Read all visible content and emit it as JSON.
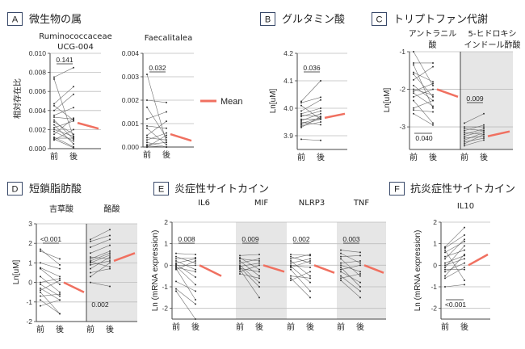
{
  "colors": {
    "mean": "#f07060",
    "subject": "#555555",
    "grid": "#bdbdbd",
    "shade": "#e6e6e6",
    "axis": "#444444"
  },
  "panels": {
    "A": {
      "letter": "A",
      "title": "微生物の属",
      "ylabel": "相対存在比"
    },
    "B": {
      "letter": "B",
      "title": "グルタミン酸",
      "ylabel": "Ln[uM]"
    },
    "C": {
      "letter": "C",
      "title": "トリプトファン代謝",
      "ylabel": "Ln[uM]"
    },
    "D": {
      "letter": "D",
      "title": "短鎖脂肪酸",
      "ylabel": "Ln[uM]"
    },
    "E": {
      "letter": "E",
      "title": "炎症性サイトカイン",
      "ylabel": "Ln (mRNA expression)"
    },
    "F": {
      "letter": "F",
      "title": "抗炎症性サイトカイン",
      "ylabel": "Ln (mRNA expression)"
    }
  },
  "legend": {
    "mean_label": "Mean"
  },
  "xlabels": {
    "pre": "前",
    "post": "後"
  },
  "chart_data": [
    {
      "id": "A1",
      "panel": "A",
      "type": "line",
      "title_lines": [
        "Ruminococcaceae",
        "UCG-004"
      ],
      "ylim": [
        0,
        0.01
      ],
      "yticks": [
        "0.000",
        "0.002",
        "0.004",
        "0.006",
        "0.008",
        "0.010"
      ],
      "tick_values": [
        0,
        0.002,
        0.004,
        0.006,
        0.008,
        0.01
      ],
      "p_value": "0.141",
      "mean": [
        0.0027,
        0.0021
      ],
      "pairs": [
        [
          0.0075,
          0.0085
        ],
        [
          0.0073,
          0.0012
        ],
        [
          0.0047,
          0.0065
        ],
        [
          0.0045,
          0.003
        ],
        [
          0.004,
          0.0057
        ],
        [
          0.0035,
          0.0043
        ],
        [
          0.0033,
          0.0031
        ],
        [
          0.003,
          0.001
        ],
        [
          0.0028,
          0.0015
        ],
        [
          0.0025,
          0.0005
        ],
        [
          0.0022,
          0.0029
        ],
        [
          0.002,
          0.0013
        ],
        [
          0.0018,
          0.0008
        ],
        [
          0.0015,
          0.0032
        ],
        [
          0.0012,
          0.0002
        ],
        [
          0.0011,
          0.0011
        ],
        [
          0.001,
          0.0001
        ],
        [
          0.0009,
          0.002
        ]
      ]
    },
    {
      "id": "A2",
      "panel": "A",
      "type": "line",
      "title_lines": [
        "Faecalitalea"
      ],
      "ylim": [
        0,
        0.004
      ],
      "yticks": [
        "0.000",
        "0.001",
        "0.002",
        "0.003",
        "0.004"
      ],
      "tick_values": [
        0,
        0.001,
        0.002,
        0.003,
        0.004
      ],
      "p_value": "0.032",
      "mean": [
        0.00055,
        0.00027
      ],
      "pairs": [
        [
          0.0031,
          0.0002
        ],
        [
          0.002,
          0.0019
        ],
        [
          0.0017,
          0.0004
        ],
        [
          0.0012,
          0.0015
        ],
        [
          0.0009,
          0.0008
        ],
        [
          0.0008,
          0.0001
        ],
        [
          0.0005,
          0.0011
        ],
        [
          0.0004,
          0.0003
        ],
        [
          0.0003,
          0.0006
        ],
        [
          0.0002,
          0.0
        ],
        [
          0.0001,
          0.0002
        ],
        [
          0.0,
          0.0
        ],
        [
          0.0,
          0.0005
        ],
        [
          5e-05,
          0.0
        ]
      ]
    },
    {
      "id": "B1",
      "panel": "B",
      "type": "line",
      "title_lines": [],
      "ylim": [
        3.85,
        4.2
      ],
      "yticks": [
        "3.9",
        "4.0",
        "4.1",
        "4.2"
      ],
      "tick_values": [
        3.9,
        4.0,
        4.1,
        4.2
      ],
      "p_value": "0.036",
      "mean": [
        3.965,
        3.98
      ],
      "pairs": [
        [
          4.025,
          4.1
        ],
        [
          4.02,
          4.04
        ],
        [
          4.01,
          3.96
        ],
        [
          3.99,
          4.03
        ],
        [
          3.98,
          4.0
        ],
        [
          3.975,
          3.97
        ],
        [
          3.97,
          3.99
        ],
        [
          3.96,
          3.96
        ],
        [
          3.955,
          3.98
        ],
        [
          3.95,
          3.94
        ],
        [
          3.945,
          3.965
        ],
        [
          3.94,
          3.96
        ],
        [
          3.935,
          3.95
        ],
        [
          3.93,
          3.97
        ],
        [
          3.887,
          3.883
        ]
      ]
    },
    {
      "id": "C1",
      "panel": "C",
      "type": "line",
      "title_lines": [
        "アントラニル",
        "酸"
      ],
      "ylim": [
        -3.6,
        -1
      ],
      "yticks": [
        "-1",
        "-2",
        "-3"
      ],
      "tick_values": [
        -1,
        -2,
        -3
      ],
      "p_value": "0.040",
      "mean": [
        -2.0,
        -2.2
      ],
      "pairs": [
        [
          -1.0,
          -1.9
        ],
        [
          -1.3,
          -1.3
        ],
        [
          -1.35,
          -2.5
        ],
        [
          -1.55,
          -1.8
        ],
        [
          -1.6,
          -2.2
        ],
        [
          -1.75,
          -1.4
        ],
        [
          -1.9,
          -2.3
        ],
        [
          -2.0,
          -2.15
        ],
        [
          -2.05,
          -1.85
        ],
        [
          -2.1,
          -2.45
        ],
        [
          -2.2,
          -2.0
        ],
        [
          -2.3,
          -2.9
        ],
        [
          -2.5,
          -2.3
        ],
        [
          -2.55,
          -2.6
        ],
        [
          -2.65,
          -2.95
        ]
      ]
    },
    {
      "id": "C2",
      "panel": "C",
      "type": "line",
      "title_lines": [
        "5-ヒドロキシ",
        "インドール酢酸"
      ],
      "ylim": [
        -3.6,
        -1
      ],
      "p_value": "0.009",
      "mean": [
        -3.25,
        -3.12
      ],
      "pairs": [
        [
          -2.9,
          -2.65
        ],
        [
          -3.0,
          -3.0
        ],
        [
          -3.05,
          -3.1
        ],
        [
          -3.1,
          -2.95
        ],
        [
          -3.15,
          -3.2
        ],
        [
          -3.2,
          -3.05
        ],
        [
          -3.25,
          -3.1
        ],
        [
          -3.3,
          -3.25
        ],
        [
          -3.35,
          -3.15
        ],
        [
          -3.4,
          -3.3
        ],
        [
          -3.45,
          -3.2
        ],
        [
          -3.5,
          -3.35
        ]
      ]
    },
    {
      "id": "D1",
      "panel": "D",
      "type": "line",
      "title_lines": [
        "吉草酸"
      ],
      "ylim": [
        -2,
        3
      ],
      "yticks": [
        "-2",
        "-1",
        "0",
        "1",
        "2",
        "3"
      ],
      "tick_values": [
        -2,
        -1,
        0,
        1,
        2,
        3
      ],
      "p_value": "<0.001",
      "mean": [
        0.0,
        -0.5
      ],
      "pairs": [
        [
          1.7,
          0.9
        ],
        [
          1.6,
          1.2
        ],
        [
          1.0,
          0.7
        ],
        [
          0.75,
          0.3
        ],
        [
          0.7,
          -0.1
        ],
        [
          0.3,
          -0.5
        ],
        [
          0.0,
          0.2
        ],
        [
          -0.1,
          -0.7
        ],
        [
          -0.3,
          -0.9
        ],
        [
          -0.4,
          0.1
        ],
        [
          -0.5,
          -1.6
        ],
        [
          -0.7,
          -0.6
        ],
        [
          -0.9,
          -1.6
        ],
        [
          -1.2,
          -0.9
        ]
      ]
    },
    {
      "id": "D2",
      "panel": "D",
      "type": "line",
      "title_lines": [
        "酪酸"
      ],
      "ylim": [
        -2,
        3
      ],
      "p_value": "0.002",
      "mean": [
        1.1,
        1.5
      ],
      "pairs": [
        [
          2.2,
          2.7
        ],
        [
          2.1,
          2.4
        ],
        [
          1.8,
          2.2
        ],
        [
          1.5,
          1.9
        ],
        [
          1.3,
          1.2
        ],
        [
          1.2,
          1.6
        ],
        [
          1.1,
          1.5
        ],
        [
          1.05,
          0.8
        ],
        [
          1.0,
          1.4
        ],
        [
          0.9,
          1.1
        ],
        [
          0.7,
          1.3
        ],
        [
          0.5,
          0.7
        ],
        [
          0.3,
          1.0
        ],
        [
          0.0,
          -0.2
        ]
      ]
    },
    {
      "id": "E1",
      "panel": "E",
      "type": "line",
      "title_lines": [
        "IL6"
      ],
      "ylim": [
        -2.5,
        2
      ],
      "yticks": [
        "-2",
        "-1",
        "0",
        "1",
        "2"
      ],
      "tick_values": [
        -2,
        -1,
        0,
        1,
        2
      ],
      "p_value": "0.008",
      "mean": [
        0.0,
        -0.5
      ],
      "pairs": [
        [
          0.55,
          0.5
        ],
        [
          0.4,
          0.1
        ],
        [
          0.3,
          0.35
        ],
        [
          0.2,
          -0.2
        ],
        [
          0.1,
          0.3
        ],
        [
          0.05,
          -0.55
        ],
        [
          0,
          0.0
        ],
        [
          -0.05,
          -0.9
        ],
        [
          -0.1,
          -0.3
        ],
        [
          -0.15,
          -1.6
        ],
        [
          -0.2,
          0.2
        ],
        [
          -0.75,
          -1.2
        ],
        [
          -1.1,
          -1.8
        ],
        [
          -1.2,
          -2.5
        ]
      ]
    },
    {
      "id": "E2",
      "panel": "E",
      "type": "line",
      "title_lines": [
        "MIF"
      ],
      "ylim": [
        -2.5,
        2
      ],
      "p_value": "0.009",
      "mean": [
        0.0,
        -0.3
      ],
      "pairs": [
        [
          0.45,
          0.5
        ],
        [
          0.35,
          -0.2
        ],
        [
          0.3,
          0.2
        ],
        [
          0.2,
          -0.5
        ],
        [
          0.1,
          0.3
        ],
        [
          0.0,
          -0.8
        ],
        [
          -0.05,
          0.1
        ],
        [
          -0.1,
          -1.0
        ],
        [
          -0.15,
          -0.3
        ],
        [
          -0.2,
          -1.5
        ],
        [
          -0.3,
          0.0
        ],
        [
          -0.4,
          -0.6
        ]
      ]
    },
    {
      "id": "E3",
      "panel": "E",
      "type": "line",
      "title_lines": [
        "NLRP3"
      ],
      "ylim": [
        -2.5,
        2
      ],
      "p_value": "0.002",
      "mean": [
        0.0,
        -0.35
      ],
      "pairs": [
        [
          0.5,
          0.45
        ],
        [
          0.4,
          0.1
        ],
        [
          0.3,
          0.5
        ],
        [
          0.2,
          -0.5
        ],
        [
          0.1,
          0.3
        ],
        [
          0.0,
          -0.1
        ],
        [
          -0.05,
          -0.8
        ],
        [
          -0.1,
          0.2
        ],
        [
          -0.2,
          -1.2
        ],
        [
          -0.5,
          -0.6
        ],
        [
          -0.6,
          -1.5
        ],
        [
          -0.7,
          -0.3
        ]
      ]
    },
    {
      "id": "E4",
      "panel": "E",
      "type": "line",
      "title_lines": [
        "TNF"
      ],
      "ylim": [
        -2.5,
        2
      ],
      "p_value": "0.003",
      "mean": [
        0.0,
        -0.35
      ],
      "pairs": [
        [
          0.7,
          0.6
        ],
        [
          0.55,
          0.1
        ],
        [
          0.4,
          0.45
        ],
        [
          0.3,
          -0.5
        ],
        [
          0.1,
          0.2
        ],
        [
          0.0,
          -0.3
        ],
        [
          -0.1,
          -1.0
        ],
        [
          -0.2,
          0.0
        ],
        [
          -0.3,
          -0.8
        ],
        [
          -0.5,
          -1.2
        ],
        [
          -0.6,
          -0.4
        ],
        [
          -0.7,
          -1.5
        ]
      ]
    },
    {
      "id": "F1",
      "panel": "F",
      "type": "line",
      "title_lines": [
        "IL10"
      ],
      "ylim": [
        -2.5,
        2
      ],
      "yticks": [
        "-2",
        "-1",
        "0",
        "1",
        "2"
      ],
      "tick_values": [
        -2,
        -1,
        0,
        1,
        2
      ],
      "p_value": "<0.001",
      "mean": [
        0.0,
        0.5
      ],
      "pairs": [
        [
          0.85,
          1.75
        ],
        [
          0.8,
          1.4
        ],
        [
          0.6,
          1.1
        ],
        [
          0.4,
          0.7
        ],
        [
          0.3,
          1.2
        ],
        [
          0.1,
          0.45
        ],
        [
          0.0,
          0.3
        ],
        [
          -0.1,
          0.9
        ],
        [
          -0.2,
          -0.2
        ],
        [
          -0.3,
          0.1
        ],
        [
          -0.5,
          0.5
        ],
        [
          -0.6,
          -0.1
        ],
        [
          -1.0,
          -0.9
        ],
        [
          0.7,
          -0.7
        ]
      ]
    }
  ]
}
